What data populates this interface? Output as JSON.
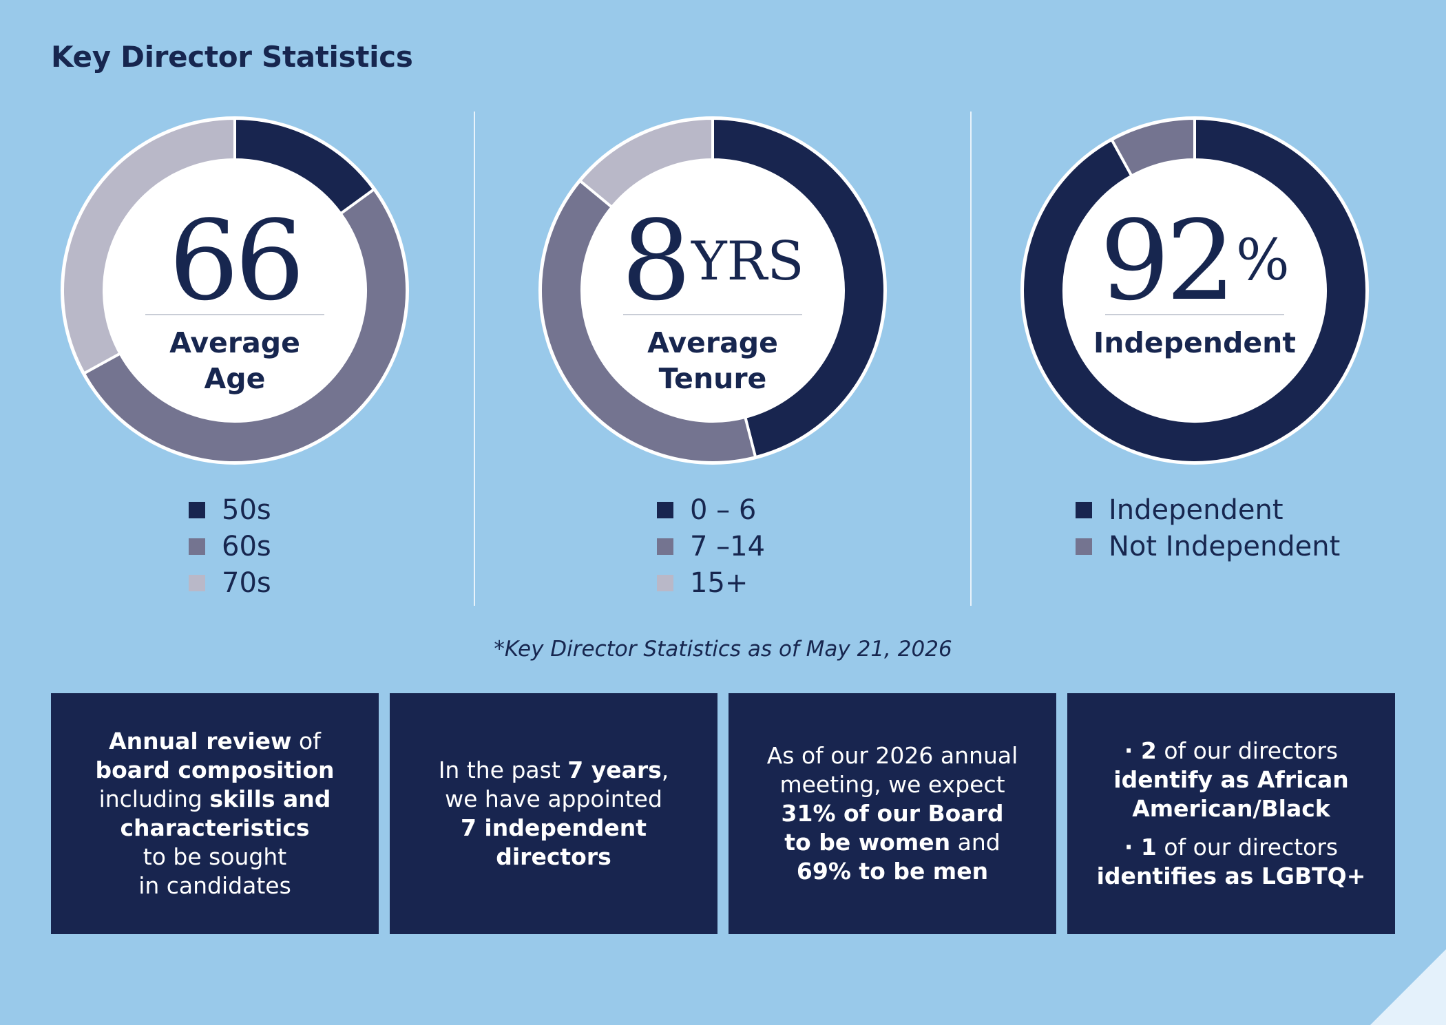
{
  "title": "Key Director Statistics",
  "colors": {
    "background": "#99c9ea",
    "navy": "#18254f",
    "slate": "#747490",
    "lavender": "#b9b8c8",
    "center": "#ffffff"
  },
  "chart_data": [
    {
      "type": "pie",
      "title": "Average Age",
      "center_value": "66",
      "center_unit": "",
      "center_label": [
        "Average",
        "Age"
      ],
      "categories": [
        "50s",
        "60s",
        "70s"
      ],
      "values": [
        15,
        52,
        33
      ],
      "colors": [
        "#18254f",
        "#747490",
        "#b9b8c8"
      ]
    },
    {
      "type": "pie",
      "title": "Average Tenure",
      "center_value": "8",
      "center_unit": "YRS",
      "center_label": [
        "Average",
        "Tenure"
      ],
      "categories": [
        "0 – 6",
        "7 –14",
        "15+"
      ],
      "values": [
        46,
        40,
        14
      ],
      "colors": [
        "#18254f",
        "#747490",
        "#b9b8c8"
      ]
    },
    {
      "type": "pie",
      "title": "Independent",
      "center_value": "92",
      "center_unit": "%",
      "center_label": [
        "Independent"
      ],
      "categories": [
        "Independent",
        "Not Independent"
      ],
      "values": [
        92,
        8
      ],
      "colors": [
        "#18254f",
        "#747490"
      ]
    }
  ],
  "footnote": "*Key Director Statistics as of May 21, 2026",
  "boxes": [
    {
      "paragraphs": [
        [
          {
            "text": "Annual review",
            "bold": true
          },
          {
            "text": " of",
            "bold": false
          },
          {
            "br": true
          },
          {
            "text": "board composition",
            "bold": true
          },
          {
            "br": true
          },
          {
            "text": "including ",
            "bold": false
          },
          {
            "text": "skills and",
            "bold": true
          },
          {
            "br": true
          },
          {
            "text": "characteristics",
            "bold": true
          },
          {
            "br": true
          },
          {
            "text": "to be sought",
            "bold": false
          },
          {
            "br": true
          },
          {
            "text": "in candidates",
            "bold": false
          }
        ]
      ]
    },
    {
      "paragraphs": [
        [
          {
            "text": "In the past ",
            "bold": false
          },
          {
            "text": "7 years",
            "bold": true
          },
          {
            "text": ",",
            "bold": false
          },
          {
            "br": true
          },
          {
            "text": "we have appointed",
            "bold": false
          },
          {
            "br": true
          },
          {
            "text": "7 independent",
            "bold": true
          },
          {
            "br": true
          },
          {
            "text": "directors",
            "bold": true
          }
        ]
      ]
    },
    {
      "paragraphs": [
        [
          {
            "text": "As of our 2026 annual",
            "bold": false
          },
          {
            "br": true
          },
          {
            "text": "meeting, we expect",
            "bold": false
          },
          {
            "br": true
          },
          {
            "text": "31% of our Board",
            "bold": true
          },
          {
            "br": true
          },
          {
            "text": "to be women",
            "bold": true
          },
          {
            "text": " and",
            "bold": false
          },
          {
            "br": true
          },
          {
            "text": "69% to be men",
            "bold": true
          }
        ]
      ]
    },
    {
      "paragraphs": [
        [
          {
            "text": "· 2",
            "bold": true
          },
          {
            "text": " of our directors",
            "bold": false
          },
          {
            "br": true
          },
          {
            "text": "identify as African",
            "bold": true
          },
          {
            "br": true
          },
          {
            "text": "American/Black",
            "bold": true
          }
        ],
        [
          {
            "text": "· 1",
            "bold": true
          },
          {
            "text": " of our directors",
            "bold": false
          },
          {
            "br": true
          },
          {
            "text": "identifies as LGBTQ+",
            "bold": true
          }
        ]
      ]
    }
  ]
}
